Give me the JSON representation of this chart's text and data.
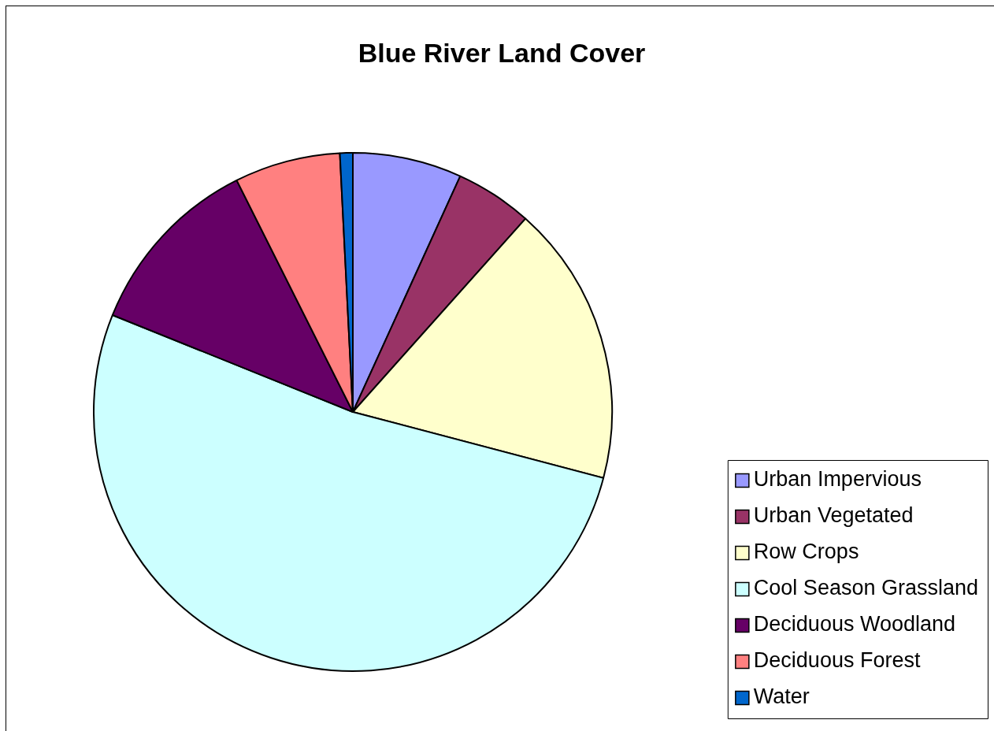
{
  "chart_data": {
    "type": "pie",
    "title": "Blue River Land Cover",
    "categories": [
      "Urban Impervious",
      "Urban Vegetated",
      "Row Crops",
      "Cool Season Grassland",
      "Deciduous Woodland",
      "Deciduous Forest",
      "Water"
    ],
    "values": [
      6.8,
      4.8,
      17.5,
      52.0,
      11.5,
      6.6,
      0.8
    ],
    "colors": [
      "#9999ff",
      "#993366",
      "#ffffcc",
      "#ccffff",
      "#660066",
      "#ff8080",
      "#0066cc"
    ],
    "legend": "bottom right"
  }
}
